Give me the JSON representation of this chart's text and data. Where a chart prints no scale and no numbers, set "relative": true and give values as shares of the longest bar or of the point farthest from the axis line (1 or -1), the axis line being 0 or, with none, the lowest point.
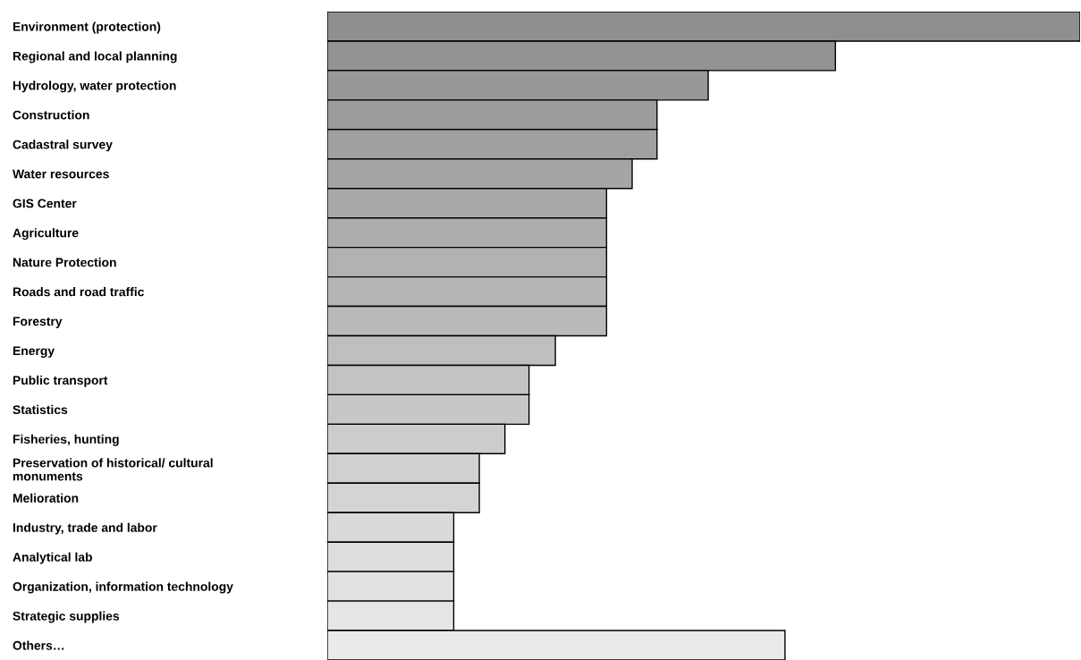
{
  "chart_data": {
    "type": "bar",
    "orientation": "horizontal",
    "relative": true,
    "categories": [
      "Environment (protection)",
      "Regional and local planning",
      "Hydrology, water protection",
      "Construction",
      "Cadastral survey",
      "Water resources",
      "GIS Center",
      "Agriculture",
      "Nature Protection",
      "Roads and road traffic",
      "Forestry",
      "Energy",
      "Public transport",
      "Statistics",
      "Fisheries, hunting",
      "Preservation of historical/ cultural\nmonuments",
      "Melioration",
      "Industry, trade and labor",
      "Analytical lab",
      "Organization, information technology",
      "Strategic supplies",
      "Others…"
    ],
    "values": [
      1,
      0.675,
      0.506,
      0.438,
      0.438,
      0.405,
      0.371,
      0.371,
      0.371,
      0.371,
      0.371,
      0.303,
      0.268,
      0.268,
      0.236,
      0.202,
      0.202,
      0.168,
      0.168,
      0.168,
      0.168,
      0.608
    ],
    "colors": [
      "#8f8f8f",
      "#939393",
      "#989898",
      "#9c9c9c",
      "#a0a0a0",
      "#a5a5a5",
      "#a9a9a9",
      "#adadad",
      "#b2b2b2",
      "#b6b6b6",
      "#bababa",
      "#bfbfbf",
      "#c3c3c3",
      "#c7c7c7",
      "#cccccc",
      "#d0d0d0",
      "#d4d4d4",
      "#d9d9d9",
      "#dddddd",
      "#e1e1e1",
      "#e6e6e6",
      "#eaeaea"
    ]
  }
}
